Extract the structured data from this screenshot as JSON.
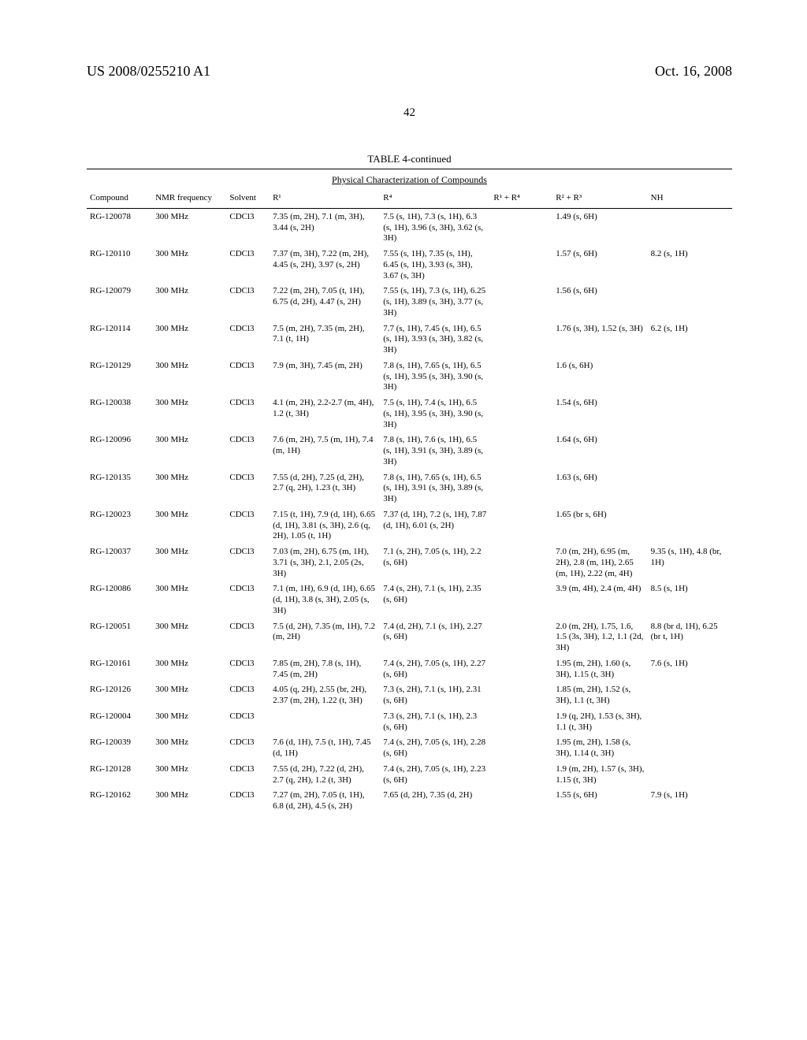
{
  "header": {
    "left": "US 2008/0255210 A1",
    "right": "Oct. 16, 2008"
  },
  "page_number": "42",
  "table": {
    "title": "TABLE 4-continued",
    "subtitle": "Physical Characterization of Compounds",
    "columns": [
      "Compound",
      "NMR frequency",
      "Solvent",
      "R¹",
      "R⁴",
      "R¹ + R⁴",
      "R² + R³",
      "NH"
    ],
    "rows": [
      {
        "compound": "RG-120078",
        "freq": "300 MHz",
        "solvent": "CDCl3",
        "r1": "7.35 (m, 2H), 7.1 (m, 3H), 3.44 (s, 2H)",
        "r4": "7.5 (s, 1H), 7.3 (s, 1H), 6.3 (s, 1H), 3.96 (s, 3H), 3.62 (s, 3H)",
        "r1r4": "",
        "r2r3": "1.49 (s, 6H)",
        "nh": ""
      },
      {
        "compound": "RG-120110",
        "freq": "300 MHz",
        "solvent": "CDCl3",
        "r1": "7.37 (m, 3H), 7.22 (m, 2H), 4.45 (s, 2H), 3.97 (s, 2H)",
        "r4": "7.55 (s, 1H), 7.35 (s, 1H), 6.45 (s, 1H), 3.93 (s, 3H), 3.67 (s, 3H)",
        "r1r4": "",
        "r2r3": "1.57 (s, 6H)",
        "nh": "8.2 (s, 1H)"
      },
      {
        "compound": "RG-120079",
        "freq": "300 MHz",
        "solvent": "CDCl3",
        "r1": "7.22 (m, 2H), 7.05 (t, 1H), 6.75 (d, 2H), 4.47 (s, 2H)",
        "r4": "7.55 (s, 1H), 7.3 (s, 1H), 6.25 (s, 1H), 3.89 (s, 3H), 3.77 (s, 3H)",
        "r1r4": "",
        "r2r3": "1.56 (s, 6H)",
        "nh": ""
      },
      {
        "compound": "RG-120114",
        "freq": "300 MHz",
        "solvent": "CDCl3",
        "r1": "7.5 (m, 2H), 7.35 (m, 2H), 7.1 (t, 1H)",
        "r4": "7.7 (s, 1H), 7.45 (s, 1H), 6.5 (s, 1H), 3.93 (s, 3H), 3.82 (s, 3H)",
        "r1r4": "",
        "r2r3": "1.76 (s, 3H), 1.52 (s, 3H)",
        "nh": "6.2 (s, 1H)"
      },
      {
        "compound": "RG-120129",
        "freq": "300 MHz",
        "solvent": "CDCl3",
        "r1": "7.9 (m, 3H), 7.45 (m, 2H)",
        "r4": "7.8 (s, 1H), 7.65 (s, 1H), 6.5 (s, 1H), 3.95 (s, 3H), 3.90 (s, 3H)",
        "r1r4": "",
        "r2r3": "1.6 (s, 6H)",
        "nh": ""
      },
      {
        "compound": "RG-120038",
        "freq": "300 MHz",
        "solvent": "CDCl3",
        "r1": "4.1 (m, 2H), 2.2-2.7 (m, 4H), 1.2 (t, 3H)",
        "r4": "7.5 (s, 1H), 7.4 (s, 1H), 6.5 (s, 1H), 3.95 (s, 3H), 3.90 (s, 3H)",
        "r1r4": "",
        "r2r3": "1.54 (s, 6H)",
        "nh": ""
      },
      {
        "compound": "RG-120096",
        "freq": "300 MHz",
        "solvent": "CDCl3",
        "r1": "7.6 (m, 2H), 7.5 (m, 1H), 7.4 (m, 1H)",
        "r4": "7.8 (s, 1H), 7.6 (s, 1H), 6.5 (s, 1H), 3.91 (s, 3H), 3.89 (s, 3H)",
        "r1r4": "",
        "r2r3": "1.64 (s, 6H)",
        "nh": ""
      },
      {
        "compound": "RG-120135",
        "freq": "300 MHz",
        "solvent": "CDCl3",
        "r1": "7.55 (d, 2H), 7.25 (d, 2H), 2.7 (q, 2H), 1.23 (t, 3H)",
        "r4": "7.8 (s, 1H), 7.65 (s, 1H), 6.5 (s, 1H), 3.91 (s, 3H), 3.89 (s, 3H)",
        "r1r4": "",
        "r2r3": "1.63 (s, 6H)",
        "nh": ""
      },
      {
        "compound": "RG-120023",
        "freq": "300 MHz",
        "solvent": "CDCl3",
        "r1": "7.15 (t, 1H), 7.9 (d, 1H), 6.65 (d, 1H), 3.81 (s, 3H), 2.6 (q, 2H), 1.05 (t, 1H)",
        "r4": "7.37 (d, 1H), 7.2 (s, 1H), 7.87 (d, 1H), 6.01 (s, 2H)",
        "r1r4": "",
        "r2r3": "1.65 (br s, 6H)",
        "nh": ""
      },
      {
        "compound": "RG-120037",
        "freq": "300 MHz",
        "solvent": "CDCl3",
        "r1": "7.03 (m, 2H), 6.75 (m, 1H), 3.71 (s, 3H), 2.1, 2.05 (2s, 3H)",
        "r4": "7.1 (s, 2H), 7.05 (s, 1H), 2.2 (s, 6H)",
        "r1r4": "",
        "r2r3": "7.0 (m, 2H), 6.95 (m, 2H), 2.8 (m, 1H), 2.65 (m, 1H), 2.22 (m, 4H)",
        "nh": "9.35 (s, 1H), 4.8 (br, 1H)"
      },
      {
        "compound": "RG-120086",
        "freq": "300 MHz",
        "solvent": "CDCl3",
        "r1": "7.1 (m, 1H), 6.9 (d, 1H), 6.65 (d, 1H), 3.8 (s, 3H), 2.05 (s, 3H)",
        "r4": "7.4 (s, 2H), 7.1 (s, 1H), 2.35 (s, 6H)",
        "r1r4": "",
        "r2r3": "3.9 (m, 4H), 2.4 (m, 4H)",
        "nh": "8.5 (s, 1H)"
      },
      {
        "compound": "RG-120051",
        "freq": "300 MHz",
        "solvent": "CDCl3",
        "r1": "7.5 (d, 2H), 7.35 (m, 1H), 7.2 (m, 2H)",
        "r4": "7.4 (d, 2H), 7.1 (s, 1H), 2.27 (s, 6H)",
        "r1r4": "",
        "r2r3": "2.0 (m, 2H), 1.75, 1.6, 1.5 (3s, 3H), 1.2, 1.1 (2d, 3H)",
        "nh": "8.8 (br d, 1H), 6.25 (br t, 1H)"
      },
      {
        "compound": "RG-120161",
        "freq": "300 MHz",
        "solvent": "CDCl3",
        "r1": "7.85 (m, 2H), 7.8 (s, 1H), 7.45 (m, 2H)",
        "r4": "7.4 (s, 2H), 7.05 (s, 1H), 2.27 (s, 6H)",
        "r1r4": "",
        "r2r3": "1.95 (m, 2H), 1.60 (s, 3H), 1.15 (t, 3H)",
        "nh": "7.6 (s, 1H)"
      },
      {
        "compound": "RG-120126",
        "freq": "300 MHz",
        "solvent": "CDCl3",
        "r1": "4.05 (q, 2H), 2.55 (br, 2H), 2.37 (m, 2H), 1.22 (t, 3H)",
        "r4": "7.3 (s, 2H), 7.1 (s, 1H), 2.31 (s, 6H)",
        "r1r4": "",
        "r2r3": "1.85 (m, 2H), 1.52 (s, 3H), 1.1 (t, 3H)",
        "nh": ""
      },
      {
        "compound": "RG-120004",
        "freq": "300 MHz",
        "solvent": "CDCl3",
        "r1": "",
        "r4": "7.3 (s, 2H), 7.1 (s, 1H), 2.3 (s, 6H)",
        "r1r4": "",
        "r2r3": "1.9 (q, 2H), 1.53 (s, 3H), 1.1 (t, 3H)",
        "nh": ""
      },
      {
        "compound": "RG-120039",
        "freq": "300 MHz",
        "solvent": "CDCl3",
        "r1": "7.6 (d, 1H), 7.5 (t, 1H), 7.45 (d, 1H)",
        "r4": "7.4 (s, 2H), 7.05 (s, 1H), 2.28 (s, 6H)",
        "r1r4": "",
        "r2r3": "1.95 (m, 2H), 1.58 (s, 3H), 1.14 (t, 3H)",
        "nh": ""
      },
      {
        "compound": "RG-120128",
        "freq": "300 MHz",
        "solvent": "CDCl3",
        "r1": "7.55 (d, 2H), 7.22 (d, 2H), 2.7 (q, 2H), 1.2 (t, 3H)",
        "r4": "7.4 (s, 2H), 7.05 (s, 1H), 2.23 (s, 6H)",
        "r1r4": "",
        "r2r3": "1.9 (m, 2H), 1.57 (s, 3H), 1.15 (t, 3H)",
        "nh": ""
      },
      {
        "compound": "RG-120162",
        "freq": "300 MHz",
        "solvent": "CDCl3",
        "r1": "7.27 (m, 2H), 7.05 (t, 1H), 6.8 (d, 2H), 4.5 (s, 2H)",
        "r4": "7.65 (d, 2H), 7.35 (d, 2H)",
        "r1r4": "",
        "r2r3": "1.55 (s, 6H)",
        "nh": "7.9 (s, 1H)"
      }
    ]
  }
}
